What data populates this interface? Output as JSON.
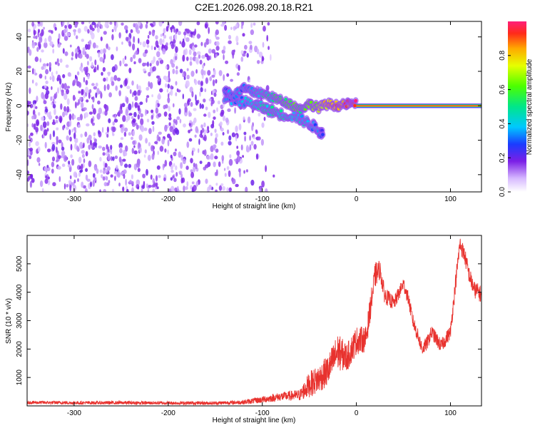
{
  "title": "C2E1.2026.098.20.18.R21",
  "colors": {
    "snr_line": "#e8322e",
    "spectrogram_core": "#ff2a1a",
    "spectrogram_low": "#7b1fe6"
  },
  "chart_data": [
    {
      "type": "heatmap",
      "xlabel": "Height of straight line (km)",
      "ylabel": "Frequency (Hz)",
      "xlim": [
        -350,
        133
      ],
      "ylim": [
        -50,
        49
      ],
      "xticks": [
        -300,
        -200,
        -100,
        0,
        100
      ],
      "yticks": [
        -40,
        -20,
        0,
        20,
        40
      ],
      "colorbar": {
        "label": "Normalized spectral amplitude",
        "range": [
          0,
          1
        ],
        "ticks": [
          "0.0",
          "0.2",
          "0.4",
          "0.6",
          "0.8"
        ],
        "tick_values": [
          0.0,
          0.2,
          0.4,
          0.6,
          0.8
        ]
      },
      "noise_region": {
        "x_range": [
          -350,
          -95
        ],
        "freq_range": [
          -50,
          49
        ],
        "amplitude": 0.1
      },
      "carrier": {
        "x_range": [
          0,
          133
        ],
        "freq": 0,
        "amplitude": 1.0
      },
      "tone_track": [
        {
          "x": -140,
          "freq": 9,
          "amplitude": 0.3
        },
        {
          "x": -130,
          "freq": 6,
          "amplitude": 0.35
        },
        {
          "x": -120,
          "freq": 10,
          "amplitude": 0.35
        },
        {
          "x": -110,
          "freq": 8,
          "amplitude": 0.4
        },
        {
          "x": -100,
          "freq": 7,
          "amplitude": 0.45
        },
        {
          "x": -90,
          "freq": 5,
          "amplitude": 0.5
        },
        {
          "x": -80,
          "freq": 3,
          "amplitude": 0.55
        },
        {
          "x": -70,
          "freq": 1,
          "amplitude": 0.6
        },
        {
          "x": -60,
          "freq": -2,
          "amplitude": 0.55
        },
        {
          "x": -50,
          "freq": 1,
          "amplitude": 0.6
        },
        {
          "x": -40,
          "freq": -1,
          "amplitude": 0.7
        },
        {
          "x": -30,
          "freq": 1,
          "amplitude": 0.8
        },
        {
          "x": -20,
          "freq": 0,
          "amplitude": 0.85
        },
        {
          "x": -10,
          "freq": 1,
          "amplitude": 0.9
        },
        {
          "x": 0,
          "freq": 1,
          "amplitude": 0.95
        }
      ],
      "secondary_track": [
        {
          "x": -140,
          "freq": 4,
          "amplitude": 0.3
        },
        {
          "x": -125,
          "freq": 3,
          "amplitude": 0.35
        },
        {
          "x": -110,
          "freq": 1,
          "amplitude": 0.4
        },
        {
          "x": -100,
          "freq": -1,
          "amplitude": 0.45
        },
        {
          "x": -90,
          "freq": -3,
          "amplitude": 0.45
        },
        {
          "x": -80,
          "freq": -5,
          "amplitude": 0.45
        },
        {
          "x": -65,
          "freq": -6,
          "amplitude": 0.4
        },
        {
          "x": -55,
          "freq": -9,
          "amplitude": 0.4
        },
        {
          "x": -45,
          "freq": -12,
          "amplitude": 0.35
        },
        {
          "x": -35,
          "freq": -17,
          "amplitude": 0.3
        }
      ]
    },
    {
      "type": "line",
      "xlabel": "Height of straight line (km)",
      "ylabel": "SNR (10 * v/v)",
      "xlim": [
        -350,
        133
      ],
      "ylim": [
        0,
        6000
      ],
      "xticks": [
        -300,
        -200,
        -100,
        0,
        100
      ],
      "yticks": [
        1000,
        2000,
        3000,
        4000,
        5000
      ],
      "series": [
        {
          "name": "SNR",
          "x": [
            -350,
            -300,
            -250,
            -200,
            -150,
            -120,
            -100,
            -80,
            -60,
            -50,
            -40,
            -30,
            -20,
            -10,
            0,
            10,
            20,
            25,
            30,
            40,
            50,
            55,
            60,
            70,
            75,
            80,
            90,
            100,
            105,
            110,
            115,
            120,
            125,
            130,
            133
          ],
          "values": [
            120,
            110,
            110,
            100,
            100,
            130,
            220,
            330,
            380,
            750,
            950,
            1250,
            1900,
            1700,
            2300,
            2350,
            4600,
            4800,
            3900,
            3600,
            4300,
            3800,
            3000,
            2000,
            2200,
            2600,
            2100,
            2600,
            4200,
            5700,
            5300,
            4600,
            4100,
            4000,
            3900
          ],
          "noise_amplitude": [
            60,
            60,
            60,
            60,
            60,
            80,
            120,
            150,
            200,
            450,
            500,
            550,
            650,
            500,
            500,
            450,
            450,
            350,
            300,
            250,
            250,
            250,
            250,
            250,
            250,
            250,
            250,
            250,
            300,
            300,
            300,
            300,
            300,
            300,
            300
          ]
        }
      ]
    }
  ]
}
